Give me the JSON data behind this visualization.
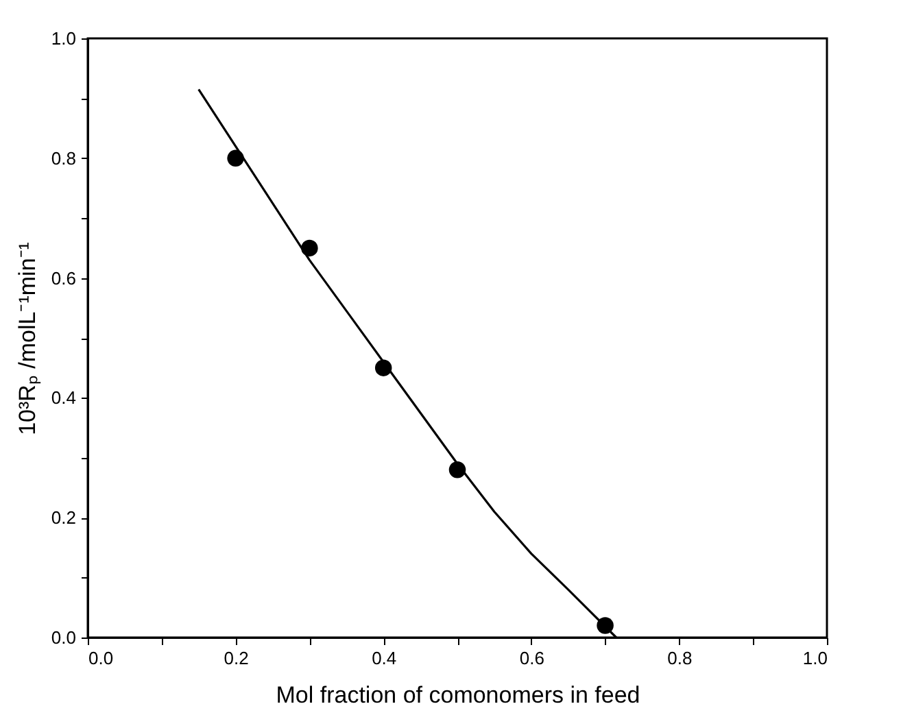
{
  "chart_data": {
    "type": "scatter",
    "xlabel": "Mol fraction of comonomers in feed",
    "ylabel": "10³Rₚ /molL⁻¹min⁻¹",
    "xlim": [
      0,
      1
    ],
    "ylim": [
      0,
      1
    ],
    "xticks": [
      {
        "value": 0,
        "label": "0.0"
      },
      {
        "value": 0.1,
        "label": null
      },
      {
        "value": 0.2,
        "label": "0.2"
      },
      {
        "value": 0.3,
        "label": null
      },
      {
        "value": 0.4,
        "label": "0.4"
      },
      {
        "value": 0.5,
        "label": null
      },
      {
        "value": 0.6,
        "label": "0.6"
      },
      {
        "value": 0.7,
        "label": null
      },
      {
        "value": 0.8,
        "label": "0.8"
      },
      {
        "value": 0.9,
        "label": null
      },
      {
        "value": 1,
        "label": "1.0"
      }
    ],
    "yticks": [
      {
        "value": 0,
        "label": "0.0"
      },
      {
        "value": 0.1,
        "label": null
      },
      {
        "value": 0.2,
        "label": "0.2"
      },
      {
        "value": 0.3,
        "label": null
      },
      {
        "value": 0.4,
        "label": "0.4"
      },
      {
        "value": 0.5,
        "label": null
      },
      {
        "value": 0.6,
        "label": "0.6"
      },
      {
        "value": 0.7,
        "label": null
      },
      {
        "value": 0.8,
        "label": "0.8"
      },
      {
        "value": 0.9,
        "label": null
      },
      {
        "value": 1,
        "label": "1.0"
      }
    ],
    "grid": false,
    "series": [
      {
        "color": "#000000",
        "marker": "circle",
        "x": [
          0.2,
          0.3,
          0.4,
          0.5,
          0.7
        ],
        "values": [
          0.8,
          0.65,
          0.45,
          0.28,
          0.02
        ]
      },
      {
        "type": "line",
        "color": "#000000",
        "line_style": "solid",
        "marker": "none",
        "x": [
          0.15,
          0.2,
          0.3,
          0.4,
          0.5,
          0.55,
          0.6,
          0.65,
          0.715
        ],
        "values": [
          0.915,
          0.82,
          0.63,
          0.46,
          0.29,
          0.21,
          0.14,
          0.08,
          0.0
        ]
      }
    ]
  }
}
